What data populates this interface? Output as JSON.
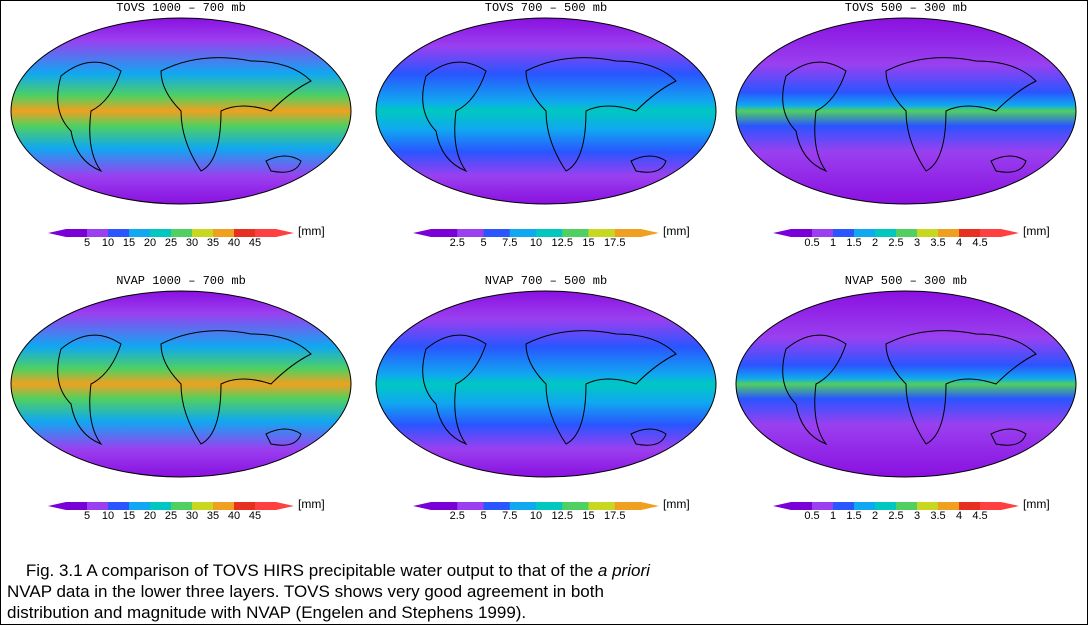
{
  "figure": {
    "panels": [
      {
        "title": "TOVS 1000 – 700 mb",
        "ticks": [
          "5",
          "10",
          "15",
          "20",
          "25",
          "30",
          "35",
          "40",
          "45"
        ],
        "unit": "[mm]"
      },
      {
        "title": "TOVS 700 – 500 mb",
        "ticks": [
          "2.5",
          "5",
          "7.5",
          "10",
          "12.5",
          "15",
          "17.5"
        ],
        "unit": "[mm]"
      },
      {
        "title": "TOVS 500 – 300 mb",
        "ticks": [
          "0.5",
          "1",
          "1.5",
          "2",
          "2.5",
          "3",
          "3.5",
          "4",
          "4.5"
        ],
        "unit": "[mm]"
      },
      {
        "title": "NVAP 1000 – 700 mb",
        "ticks": [
          "5",
          "10",
          "15",
          "20",
          "25",
          "30",
          "35",
          "40",
          "45"
        ],
        "unit": "[mm]"
      },
      {
        "title": "NVAP 700 – 500 mb",
        "ticks": [
          "2.5",
          "5",
          "7.5",
          "10",
          "12.5",
          "15",
          "17.5"
        ],
        "unit": "[mm]"
      },
      {
        "title": "NVAP 500 – 300 mb",
        "ticks": [
          "0.5",
          "1",
          "1.5",
          "2",
          "2.5",
          "3",
          "3.5",
          "4",
          "4.5"
        ],
        "unit": "[mm]"
      }
    ],
    "caption": {
      "line1": "Fig. 3.1  A comparison of TOVS HIRS precipitable water output to that of the ",
      "italic": "a priori",
      "line2": "NVAP data in the lower three layers.  TOVS shows very good agreement in both",
      "line3": "distribution and magnitude with NVAP (Engelen and Stephens 1999)."
    }
  }
}
